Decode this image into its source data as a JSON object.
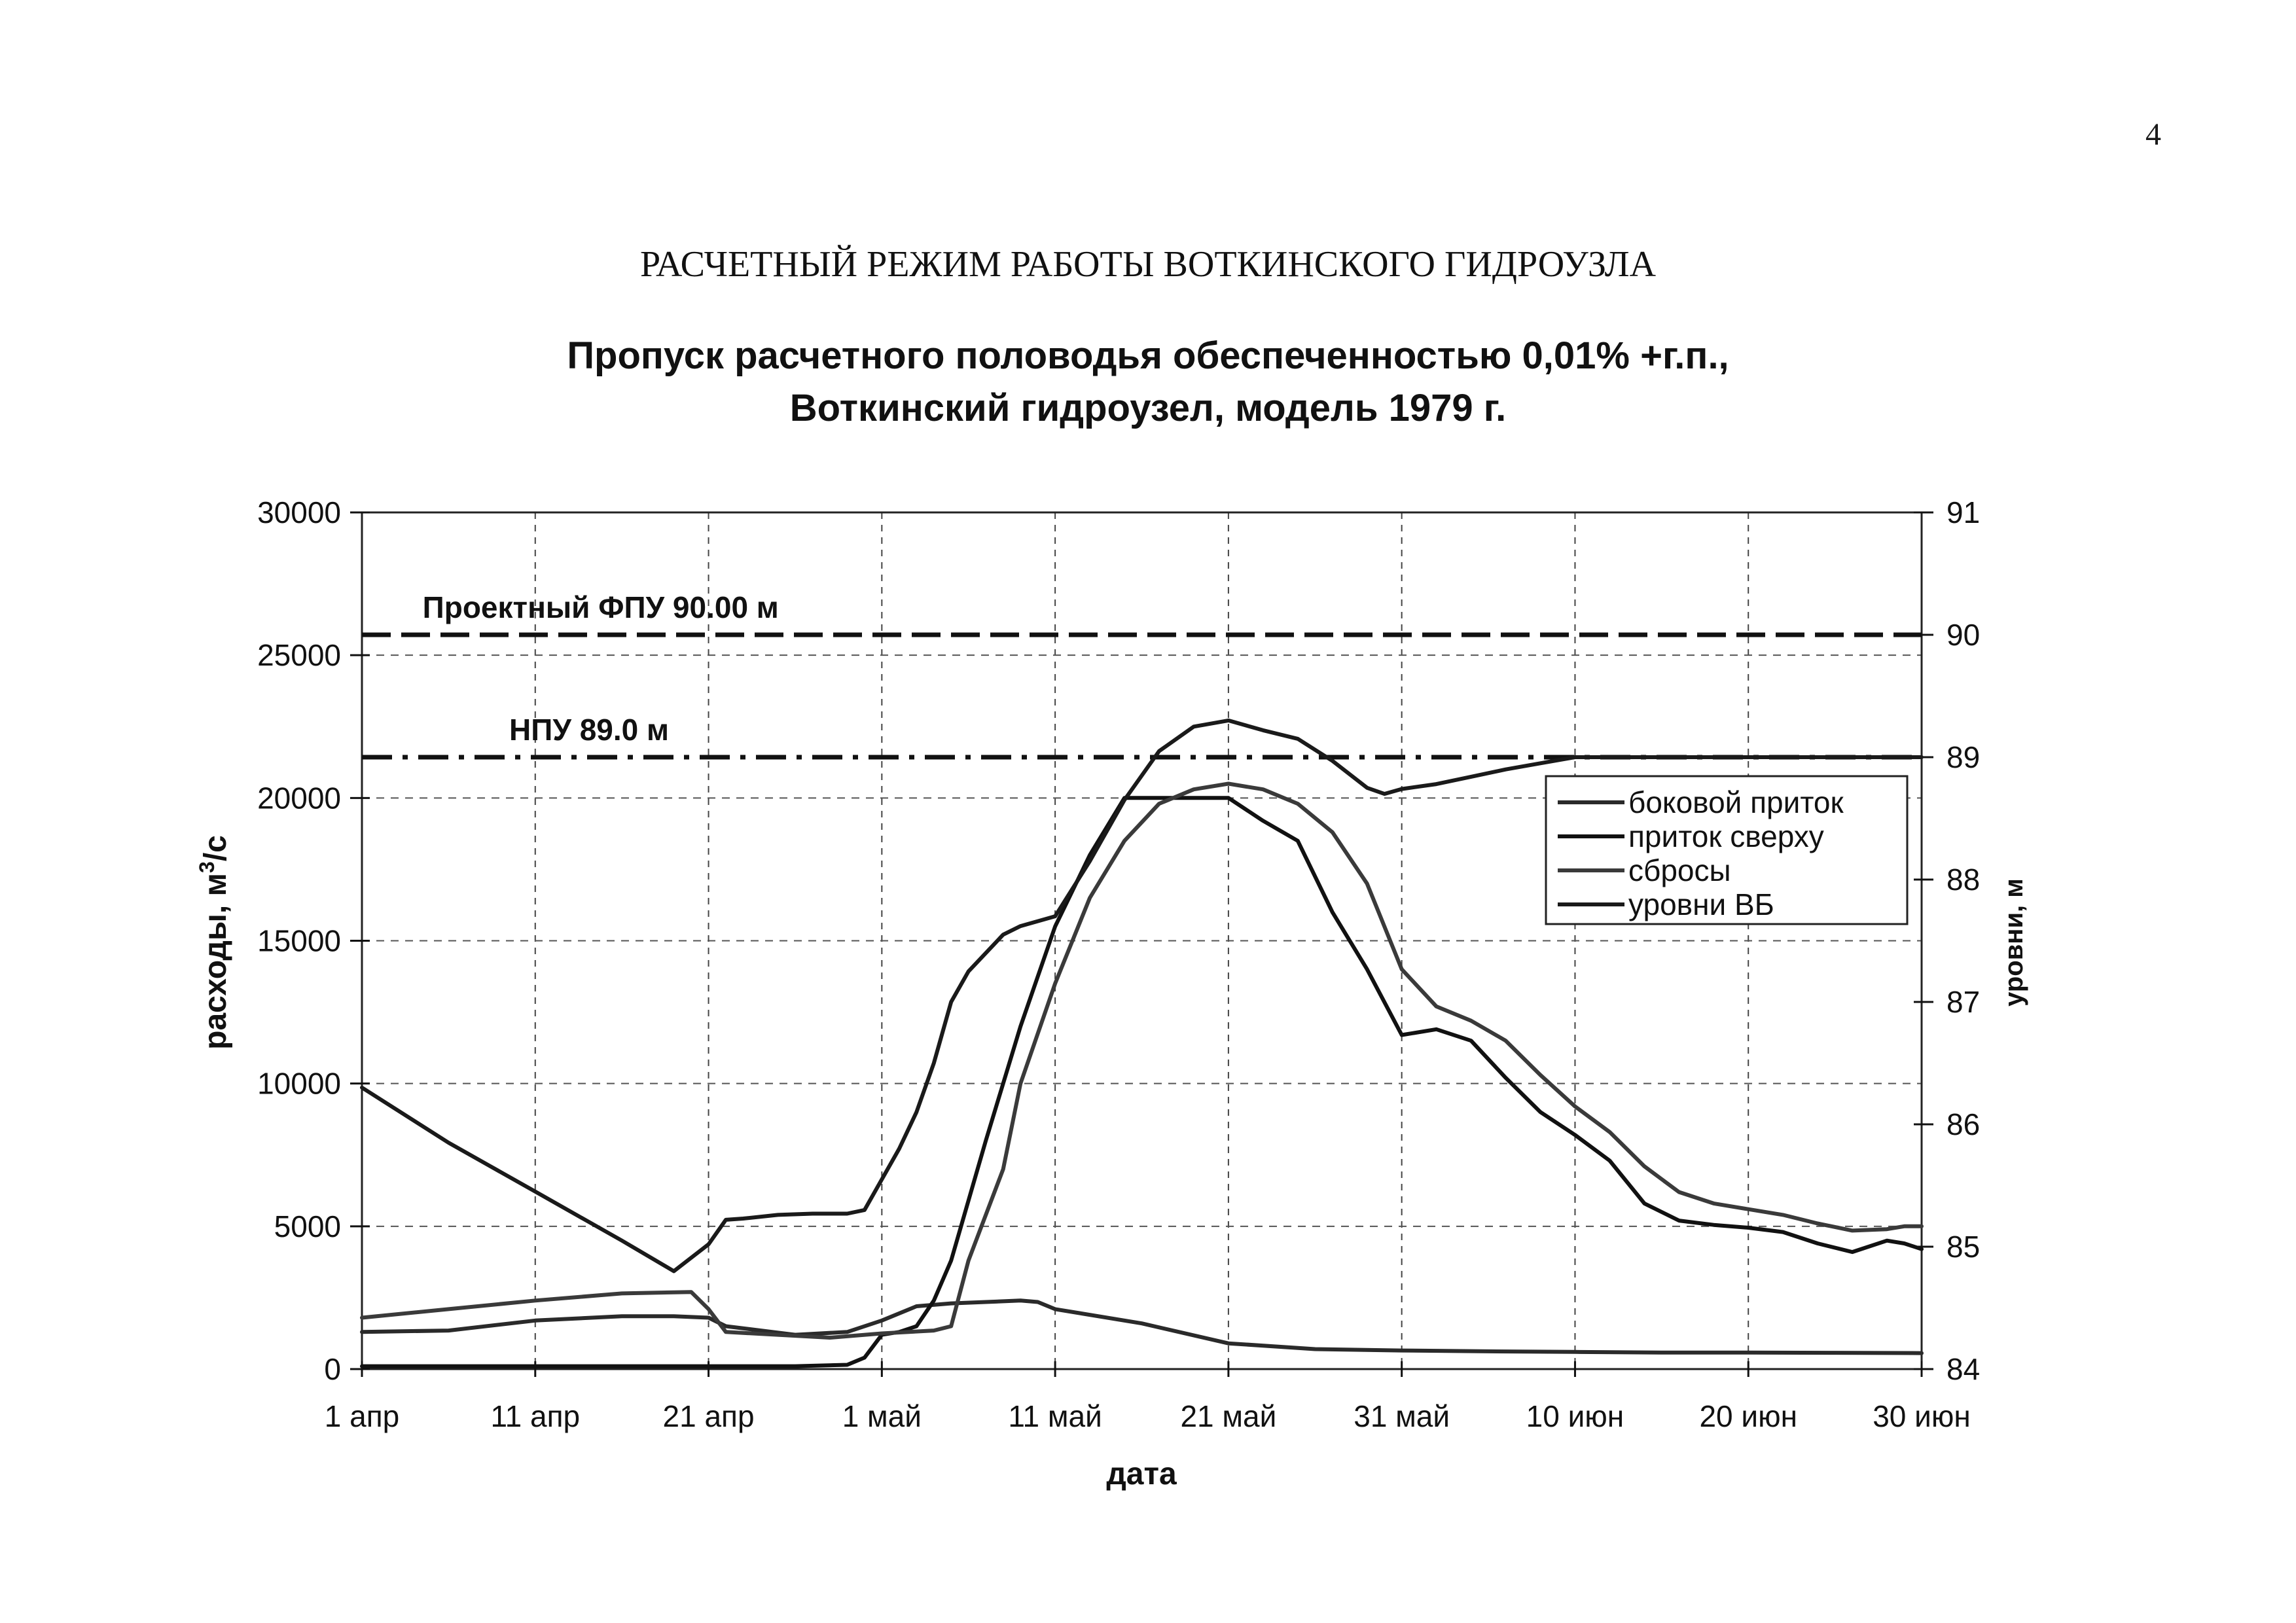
{
  "page_number": "4",
  "document_title": "РАСЧЕТНЫЙ РЕЖИМ РАБОТЫ ВОТКИНСКОГО ГИДРОУЗЛА",
  "chart_data": {
    "type": "line",
    "title_line1": "Пропуск расчетного половодья обеспеченностью 0,01% +г.п.,",
    "title_line2": "Воткинский гидроузел, модель 1979 г.",
    "xlabel": "дата",
    "ylabel_main": "расходы, м",
    "ylabel_superscript": "3",
    "ylabel_suffix": "/с",
    "y2label": "уровни, м",
    "xlim": [
      0,
      90
    ],
    "ylim": [
      0,
      30000
    ],
    "y2lim": [
      84,
      91
    ],
    "x_ticks": [
      {
        "x": 0,
        "label": "1 апр"
      },
      {
        "x": 10,
        "label": "11 апр"
      },
      {
        "x": 20,
        "label": "21 апр"
      },
      {
        "x": 30,
        "label": "1 май"
      },
      {
        "x": 40,
        "label": "11 май"
      },
      {
        "x": 50,
        "label": "21 май"
      },
      {
        "x": 60,
        "label": "31 май"
      },
      {
        "x": 70,
        "label": "10 июн"
      },
      {
        "x": 80,
        "label": "20 июн"
      },
      {
        "x": 90,
        "label": "30 июн"
      }
    ],
    "y_ticks": [
      {
        "y": 0,
        "label": "0"
      },
      {
        "y": 5000,
        "label": "5000"
      },
      {
        "y": 10000,
        "label": "10000"
      },
      {
        "y": 15000,
        "label": "15000"
      },
      {
        "y": 20000,
        "label": "20000"
      },
      {
        "y": 25000,
        "label": "25000"
      },
      {
        "y": 30000,
        "label": "30000"
      }
    ],
    "y2_ticks": [
      {
        "y": 84,
        "label": "84"
      },
      {
        "y": 85,
        "label": "85"
      },
      {
        "y": 86,
        "label": "86"
      },
      {
        "y": 87,
        "label": "87"
      },
      {
        "y": 88,
        "label": "88"
      },
      {
        "y": 89,
        "label": "89"
      },
      {
        "y": 90,
        "label": "90"
      },
      {
        "y": 91,
        "label": "91"
      }
    ],
    "reference_lines": [
      {
        "label": "Проектный ФПУ 90.00 м",
        "level": 90.0,
        "style": "dash",
        "label_x": 3.5
      },
      {
        "label": "НПУ 89.0 м",
        "level": 89.0,
        "style": "dashdot",
        "label_x": 8.5
      }
    ],
    "series": [
      {
        "name": "боковой приток",
        "axis": "left",
        "color": "#2a2a2a",
        "x": [
          0,
          5,
          10,
          15,
          18,
          20,
          21,
          25,
          28,
          30,
          32,
          34,
          36,
          38,
          39,
          40,
          45,
          50,
          55,
          60,
          65,
          70,
          75,
          80,
          85,
          90
        ],
        "y": [
          1300,
          1350,
          1700,
          1850,
          1850,
          1800,
          1500,
          1200,
          1300,
          1700,
          2200,
          2300,
          2350,
          2400,
          2350,
          2100,
          1600,
          900,
          700,
          650,
          620,
          600,
          580,
          580,
          570,
          560
        ]
      },
      {
        "name": "приток сверху",
        "axis": "left",
        "color": "#111111",
        "x": [
          0,
          10,
          20,
          25,
          28,
          29,
          30,
          31,
          32,
          33,
          34,
          36,
          38,
          40,
          42,
          44,
          45,
          47,
          50,
          52,
          54,
          56,
          58,
          60,
          62,
          64,
          66,
          68,
          70,
          72,
          74,
          76,
          78,
          80,
          82,
          84,
          86,
          88,
          89,
          90
        ],
        "y": [
          100,
          100,
          100,
          100,
          150,
          400,
          1200,
          1300,
          1500,
          2400,
          3800,
          8000,
          12000,
          15500,
          18000,
          20000,
          20000,
          20000,
          20000,
          19200,
          18500,
          16000,
          14000,
          11700,
          11900,
          11500,
          10200,
          9000,
          8200,
          7300,
          5800,
          5200,
          5050,
          4950,
          4800,
          4400,
          4100,
          4500,
          4400,
          4200
        ]
      },
      {
        "name": "сбросы",
        "axis": "left",
        "color": "#3a3a3a",
        "x": [
          0,
          5,
          10,
          15,
          19,
          20,
          21,
          24,
          27,
          30,
          33,
          34,
          35,
          37,
          38,
          40,
          42,
          44,
          46,
          48,
          50,
          52,
          54,
          56,
          58,
          60,
          62,
          64,
          66,
          68,
          70,
          72,
          74,
          76,
          78,
          80,
          82,
          84,
          86,
          88,
          89,
          90
        ],
        "y": [
          1800,
          2100,
          2400,
          2650,
          2700,
          2100,
          1300,
          1200,
          1100,
          1250,
          1350,
          1500,
          3800,
          7000,
          10000,
          13500,
          16500,
          18500,
          19800,
          20300,
          20500,
          20300,
          19800,
          18800,
          17000,
          14000,
          12700,
          12200,
          11500,
          10300,
          9200,
          8300,
          7100,
          6200,
          5800,
          5600,
          5400,
          5100,
          4850,
          4900,
          5000,
          5000
        ]
      },
      {
        "name": "уровни ВБ",
        "axis": "right",
        "color": "#1a1a1a",
        "x": [
          0,
          5,
          10,
          15,
          18,
          20,
          21,
          22,
          24,
          26,
          28,
          29,
          30,
          31,
          32,
          33,
          34,
          35,
          37,
          38,
          40,
          42,
          44,
          46,
          48,
          50,
          52,
          54,
          56,
          58,
          59,
          60,
          62,
          64,
          66,
          68,
          70,
          72,
          74,
          76,
          78,
          80,
          82,
          84,
          86,
          88,
          90
        ],
        "y": [
          86.3,
          85.85,
          85.45,
          85.05,
          84.8,
          85.02,
          85.22,
          85.23,
          85.26,
          85.27,
          85.27,
          85.3,
          85.55,
          85.8,
          86.1,
          86.5,
          87.0,
          87.25,
          87.55,
          87.62,
          87.7,
          88.15,
          88.65,
          89.05,
          89.25,
          89.3,
          89.22,
          89.15,
          88.97,
          88.75,
          88.7,
          88.74,
          88.78,
          88.84,
          88.9,
          88.95,
          89.0,
          89.0,
          89.0,
          89.0,
          89.0,
          89.0,
          89.0,
          89.0,
          89.0,
          89.0,
          89.0
        ]
      }
    ],
    "legend": {
      "position": "right-middle"
    }
  }
}
